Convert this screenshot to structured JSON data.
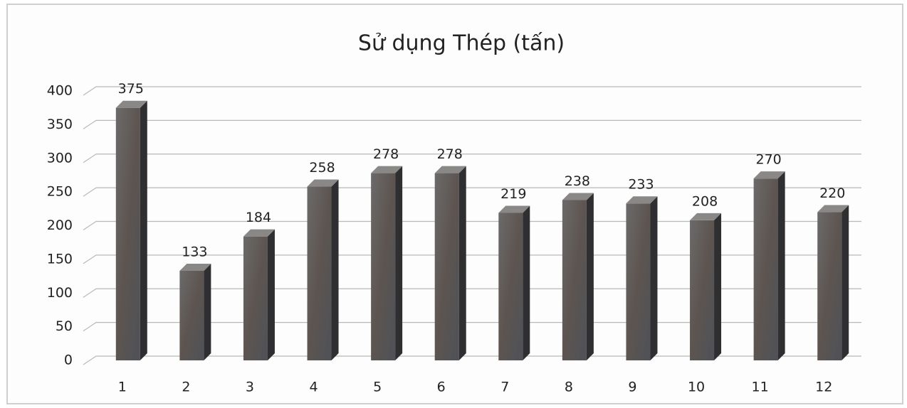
{
  "chart_data": {
    "type": "bar3d",
    "title": "Sử dụng Thép (tấn)",
    "categories": [
      "1",
      "2",
      "3",
      "4",
      "5",
      "6",
      "7",
      "8",
      "9",
      "10",
      "11",
      "12"
    ],
    "values": [
      375,
      133,
      184,
      258,
      278,
      278,
      219,
      238,
      233,
      208,
      270,
      220
    ],
    "color": "#5e5a58",
    "ylim": [
      0,
      400
    ],
    "yticks": [
      0,
      50,
      100,
      150,
      200,
      250,
      300,
      350,
      400
    ],
    "grid": true
  }
}
